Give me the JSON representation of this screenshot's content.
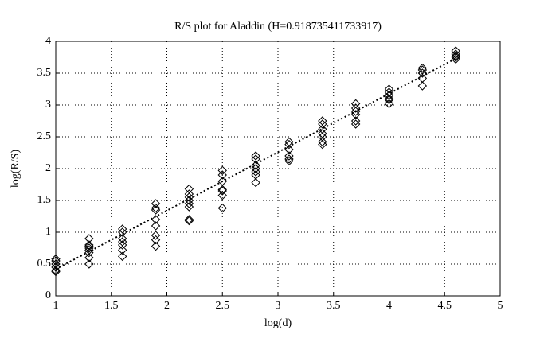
{
  "chart_data": {
    "type": "scatter",
    "title": "R/S plot for Aladdin (H=0.918735411733917)",
    "x_label": "log(d)",
    "y_label": "log(R/S)",
    "x": [
      1,
      1,
      1,
      1,
      1,
      1,
      1.3,
      1.3,
      1.3,
      1.3,
      1.3,
      1.3,
      1.3,
      1.3,
      1.6,
      1.6,
      1.6,
      1.6,
      1.6,
      1.6,
      1.6,
      1.9,
      1.9,
      1.9,
      1.9,
      1.9,
      1.9,
      1.9,
      1.9,
      2.2,
      2.2,
      2.2,
      2.2,
      2.2,
      2.2,
      2.2,
      2.2,
      2.5,
      2.5,
      2.5,
      2.5,
      2.5,
      2.5,
      2.5,
      2.8,
      2.8,
      2.8,
      2.8,
      2.8,
      2.8,
      2.8,
      3.1,
      3.1,
      3.1,
      3.1,
      3.1,
      3.1,
      3.4,
      3.4,
      3.4,
      3.4,
      3.4,
      3.4,
      3.4,
      3.7,
      3.7,
      3.7,
      3.7,
      3.7,
      3.7,
      4.0,
      4.0,
      4.0,
      4.0,
      4.0,
      4.0,
      4.3,
      4.3,
      4.3,
      4.3,
      4.3,
      4.6,
      4.6,
      4.6,
      4.6,
      4.6
    ],
    "values": [
      0.58,
      0.55,
      0.5,
      0.45,
      0.4,
      0.38,
      0.9,
      0.8,
      0.78,
      0.75,
      0.72,
      0.68,
      0.6,
      0.5,
      1.05,
      1.0,
      0.9,
      0.85,
      0.8,
      0.72,
      0.62,
      1.45,
      1.38,
      1.35,
      1.2,
      1.1,
      0.95,
      0.88,
      0.78,
      1.68,
      1.6,
      1.55,
      1.5,
      1.45,
      1.4,
      1.2,
      1.18,
      1.97,
      1.9,
      1.8,
      1.67,
      1.65,
      1.58,
      1.38,
      2.2,
      2.15,
      2.05,
      2.0,
      1.95,
      1.9,
      1.78,
      2.42,
      2.38,
      2.3,
      2.2,
      2.15,
      2.12,
      2.75,
      2.7,
      2.62,
      2.55,
      2.5,
      2.42,
      2.38,
      3.02,
      2.95,
      2.9,
      2.85,
      2.75,
      2.7,
      3.25,
      3.2,
      3.15,
      3.1,
      3.08,
      3.02,
      3.58,
      3.55,
      3.5,
      3.42,
      3.3,
      3.85,
      3.8,
      3.77,
      3.75,
      3.72
    ],
    "color": "#000000",
    "marker": "diamond",
    "fit": {
      "x": [
        1,
        4.6
      ],
      "values": [
        0.42,
        3.73
      ]
    },
    "xlim": [
      1,
      5
    ],
    "xticks": [
      1,
      1.5,
      2,
      2.5,
      3,
      3.5,
      4,
      4.5,
      5
    ],
    "ylim": [
      0,
      4
    ],
    "yticks": [
      0,
      0.5,
      1,
      1.5,
      2,
      2.5,
      3,
      3.5,
      4
    ],
    "grid": true
  }
}
